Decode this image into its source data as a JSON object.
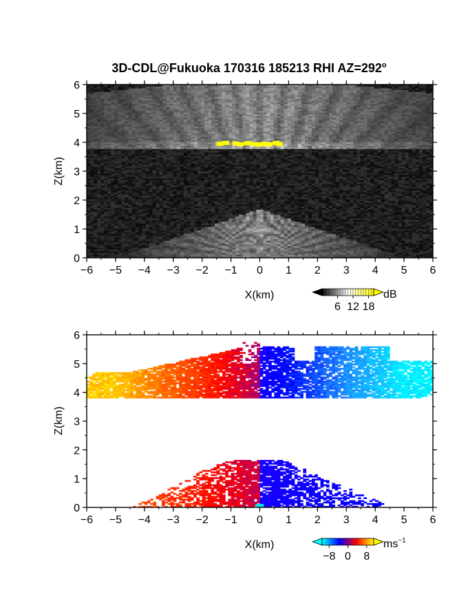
{
  "title": "3D-CDL@Fukuoka 170316 185213 RHI AZ=292",
  "title_degree": "o",
  "chart_data": [
    {
      "type": "heatmap",
      "name": "reflectivity",
      "xlabel": "X(km)",
      "ylabel": "Z(km)",
      "xlim": [
        -6,
        6
      ],
      "ylim": [
        0,
        6
      ],
      "xticks": [
        -6,
        -5,
        -4,
        -3,
        -2,
        -1,
        0,
        1,
        2,
        3,
        4,
        5,
        6
      ],
      "yticks": [
        0,
        1,
        2,
        3,
        4,
        5,
        6
      ],
      "background": "noise",
      "colorbar": {
        "unit": "dB",
        "ticks": [
          6,
          12,
          18
        ],
        "range": [
          0,
          20
        ],
        "colors": [
          "#000000",
          "#ffffff",
          "#ffff00"
        ]
      },
      "features": [
        {
          "label": "upper cloud layer",
          "x": [
            -6,
            6
          ],
          "z": [
            3.8,
            6.0
          ],
          "intensity_db": 12
        },
        {
          "label": "cloud base strong returns",
          "x": [
            -1.5,
            0.6
          ],
          "z": [
            3.85,
            4.05
          ],
          "intensity_db": 19
        },
        {
          "label": "boundary layer aerosol fan",
          "x": [
            -4.2,
            4.0
          ],
          "z": [
            0,
            1.7
          ],
          "intensity_db": 10
        }
      ]
    },
    {
      "type": "heatmap",
      "name": "doppler_velocity",
      "xlabel": "X(km)",
      "ylabel": "Z(km)",
      "xlim": [
        -6,
        6
      ],
      "ylim": [
        0,
        6
      ],
      "xticks": [
        -6,
        -5,
        -4,
        -3,
        -2,
        -1,
        0,
        1,
        2,
        3,
        4,
        5,
        6
      ],
      "yticks": [
        0,
        1,
        2,
        3,
        4,
        5,
        6
      ],
      "colorbar": {
        "unit": "ms",
        "unit_exponent": "−1",
        "ticks": [
          -8,
          0,
          8
        ],
        "tick_labels": [
          "−8",
          "0",
          "8"
        ],
        "range": [
          -11,
          11
        ],
        "colors": [
          "#00ffff",
          "#0000ff",
          "#ff0000",
          "#ffff00"
        ]
      },
      "features": [
        {
          "label": "upper layer left",
          "x": [
            -6,
            0
          ],
          "z": [
            3.8,
            5.8
          ],
          "velocity": [
            9,
            2
          ]
        },
        {
          "label": "upper layer right",
          "x": [
            0,
            6
          ],
          "z": [
            3.8,
            5.8
          ],
          "velocity": [
            -2,
            -10
          ]
        },
        {
          "label": "lower layer left",
          "x": [
            -4.3,
            0
          ],
          "z": [
            0,
            1.6
          ],
          "velocity": [
            5,
            1
          ]
        },
        {
          "label": "lower layer right",
          "x": [
            0,
            4.6
          ],
          "z": [
            0,
            1.6
          ],
          "velocity": [
            -1,
            -3
          ]
        }
      ]
    }
  ]
}
